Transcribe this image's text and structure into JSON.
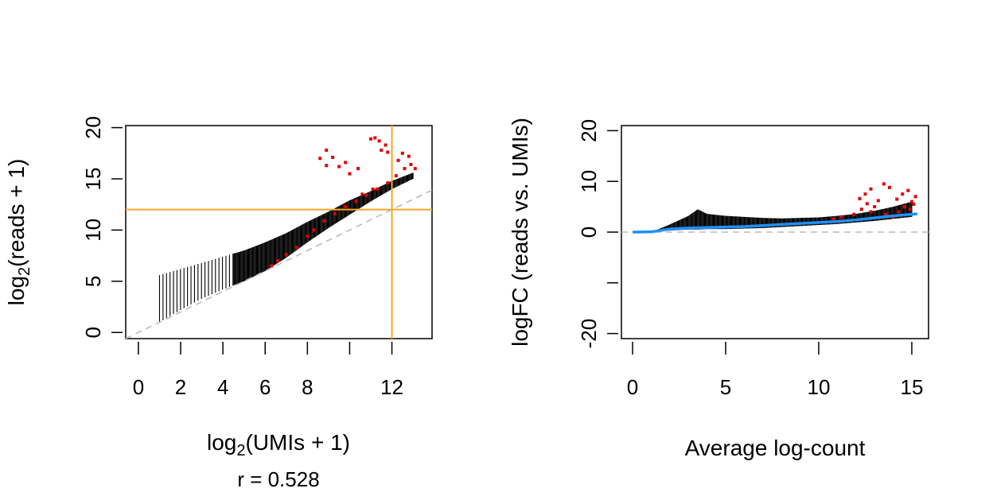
{
  "chart_data": [
    {
      "type": "scatter",
      "xlabel": "log",
      "xlabel_sub": "2",
      "xlabel_rest": "(UMIs + 1)",
      "ylabel": "log",
      "ylabel_sub": "2",
      "ylabel_rest": "(reads + 1)",
      "annotation": "r = 0.528",
      "xlim": [
        -0.6,
        13.9
      ],
      "ylim": [
        -0.6,
        20.2
      ],
      "xticks": [
        0,
        2,
        4,
        6,
        8,
        12
      ],
      "xtick_labels": [
        "0",
        "2",
        "4",
        "6",
        "8",
        "12"
      ],
      "xtick_marks": [
        0,
        2,
        4,
        6,
        8,
        10,
        12
      ],
      "yticks": [
        0,
        5,
        10,
        15,
        20
      ],
      "ytick_labels": [
        "0",
        "5",
        "10",
        "15",
        "20"
      ],
      "reference_lines": [
        {
          "kind": "vertical",
          "value": 12,
          "color": "#f5a623"
        },
        {
          "kind": "horizontal",
          "value": 12,
          "color": "#f5a623"
        },
        {
          "kind": "diagonal",
          "intercept": 0,
          "slope": 1,
          "color": "#bbbbbb",
          "dashed": true
        }
      ],
      "point_colors": {
        "normal": "#000000",
        "flagged": "#e00000"
      },
      "band": {
        "x": [
          1,
          2,
          3,
          4,
          5,
          6,
          7,
          8,
          9,
          10,
          11,
          12,
          13
        ],
        "lower": [
          1.0,
          2.2,
          3.3,
          4.2,
          5.0,
          6.0,
          7.3,
          8.8,
          10.2,
          11.5,
          12.8,
          14.0,
          15.0
        ],
        "upper": [
          5.6,
          6.2,
          6.8,
          7.4,
          8.0,
          8.8,
          9.7,
          10.8,
          11.8,
          12.9,
          13.8,
          14.8,
          15.6
        ]
      },
      "flagged_points": [
        [
          6.3,
          6.5
        ],
        [
          6.6,
          7.0
        ],
        [
          7.0,
          7.6
        ],
        [
          7.5,
          8.3
        ],
        [
          8.0,
          9.4
        ],
        [
          8.3,
          10.0
        ],
        [
          8.8,
          10.9
        ],
        [
          9.3,
          11.6
        ],
        [
          9.8,
          12.3
        ],
        [
          10.3,
          12.8
        ],
        [
          10.8,
          13.4
        ],
        [
          11.3,
          14.0
        ],
        [
          11.8,
          14.6
        ],
        [
          12.2,
          15.3
        ],
        [
          12.6,
          16.0
        ],
        [
          12.9,
          16.4
        ],
        [
          13.1,
          16.0
        ],
        [
          12.5,
          17.5
        ],
        [
          12.3,
          16.8
        ],
        [
          12.8,
          17.2
        ],
        [
          11.2,
          19.0
        ],
        [
          11.4,
          18.7
        ],
        [
          11.7,
          18.3
        ],
        [
          11.0,
          18.9
        ],
        [
          11.5,
          17.8
        ],
        [
          11.8,
          17.6
        ],
        [
          8.6,
          17.0
        ],
        [
          8.9,
          17.8
        ],
        [
          9.2,
          17.1
        ],
        [
          9.5,
          16.2
        ],
        [
          10.0,
          15.5
        ],
        [
          10.4,
          16.0
        ],
        [
          9.8,
          16.6
        ],
        [
          8.9,
          16.3
        ],
        [
          11.1,
          14.0
        ],
        [
          10.6,
          13.5
        ]
      ]
    },
    {
      "type": "scatter",
      "xlabel": "Average log-count",
      "ylabel": "logFC (reads vs. UMIs)",
      "xlim": [
        -0.6,
        15.9
      ],
      "ylim": [
        -21,
        21
      ],
      "xticks": [
        0,
        5,
        10,
        15
      ],
      "xtick_labels": [
        "0",
        "5",
        "10",
        "15"
      ],
      "yticks": [
        -20,
        -10,
        0,
        10,
        20
      ],
      "ytick_labels": [
        "-20",
        "",
        "0",
        "10",
        "20"
      ],
      "reference_lines": [
        {
          "kind": "horizontal",
          "value": 0,
          "color": "#bbbbbb",
          "dashed": true
        }
      ],
      "trend": {
        "color": "#1e90ff",
        "x": [
          0,
          1,
          2,
          3,
          4,
          5,
          6,
          7,
          8,
          9,
          10,
          11,
          12,
          13,
          14,
          15.3
        ],
        "y": [
          0,
          0.05,
          0.6,
          0.8,
          0.9,
          1.0,
          1.1,
          1.3,
          1.5,
          1.7,
          1.9,
          2.1,
          2.4,
          2.8,
          3.2,
          3.6
        ]
      },
      "band": {
        "x": [
          1,
          2,
          3,
          3.5,
          4,
          5,
          6,
          7,
          8,
          9,
          10,
          11,
          12,
          13,
          14,
          15
        ],
        "lower": [
          0,
          0.3,
          0.5,
          0.5,
          0.6,
          0.6,
          0.7,
          0.8,
          1.0,
          1.2,
          1.4,
          1.6,
          1.9,
          2.2,
          2.6,
          3.0
        ],
        "upper": [
          0,
          1.5,
          3.2,
          4.5,
          3.6,
          3.2,
          3.0,
          2.8,
          2.7,
          2.8,
          2.9,
          3.2,
          3.6,
          4.2,
          5.0,
          6.0
        ]
      },
      "flagged_points": [
        [
          12.2,
          6.6
        ],
        [
          12.5,
          7.5
        ],
        [
          12.8,
          8.5
        ],
        [
          13.2,
          6.2
        ],
        [
          13.5,
          9.5
        ],
        [
          12.3,
          4.5
        ],
        [
          12.8,
          4.0
        ],
        [
          11.9,
          3.5
        ],
        [
          13.0,
          5.0
        ],
        [
          14.2,
          6.5
        ],
        [
          14.5,
          7.5
        ],
        [
          14.8,
          8.2
        ],
        [
          15.0,
          6.0
        ],
        [
          15.2,
          7.0
        ],
        [
          14.6,
          5.0
        ],
        [
          14.9,
          4.5
        ],
        [
          15.1,
          5.5
        ],
        [
          14.3,
          4.0
        ],
        [
          13.6,
          3.5
        ],
        [
          14.0,
          3.0
        ],
        [
          11.2,
          3.0
        ],
        [
          10.8,
          2.6
        ],
        [
          13.8,
          8.8
        ],
        [
          12.6,
          5.6
        ]
      ]
    }
  ]
}
